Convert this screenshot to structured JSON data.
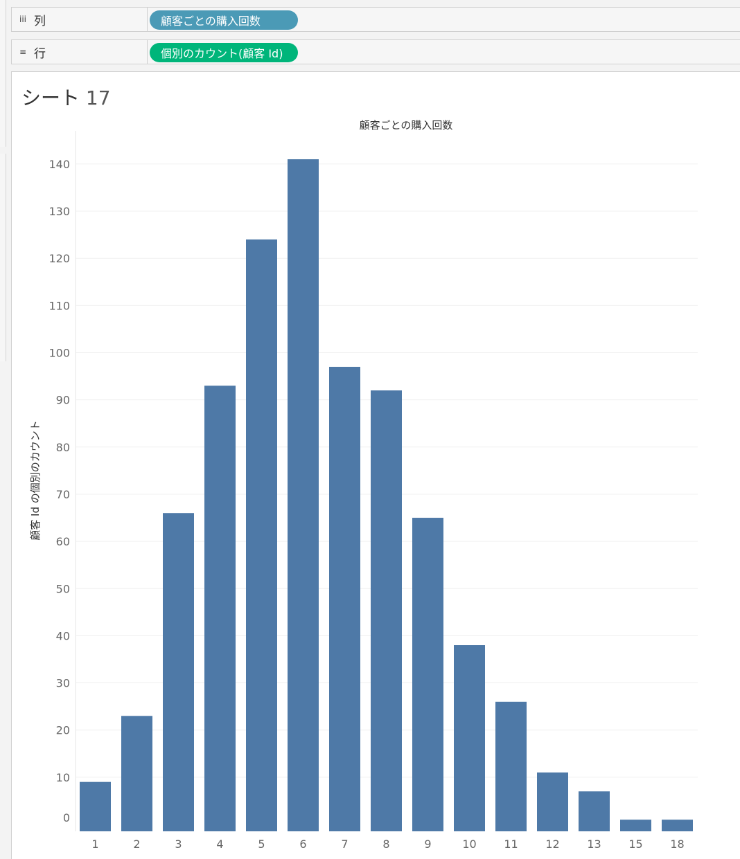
{
  "shelves": {
    "columns": {
      "icon": "columns-icon",
      "glyph": "iii",
      "label": "列",
      "pill": "顧客ごとの購入回数",
      "pill_color": "#4b9ab6"
    },
    "rows": {
      "icon": "rows-icon",
      "glyph": "≡",
      "label": "行",
      "pill": "個別のカウント(顧客 Id)",
      "pill_color": "#00b57a"
    }
  },
  "sheet": {
    "title_prefix": "シート",
    "title_number": "17"
  },
  "chart_data": {
    "type": "bar",
    "title": "顧客ごとの購入回数",
    "xlabel": "",
    "ylabel": "顧客 Id の個別のカウント",
    "categories": [
      "1",
      "2",
      "3",
      "4",
      "5",
      "6",
      "7",
      "8",
      "9",
      "10",
      "11",
      "12",
      "13",
      "15",
      "18"
    ],
    "values": [
      9,
      23,
      66,
      93,
      124,
      141,
      97,
      92,
      65,
      38,
      26,
      11,
      7,
      1,
      1
    ],
    "ylim": [
      0,
      150
    ],
    "yticks": [
      0,
      10,
      20,
      30,
      40,
      50,
      60,
      70,
      80,
      90,
      100,
      110,
      120,
      130,
      140
    ],
    "bar_color": "#4e79a7",
    "grid": true
  }
}
